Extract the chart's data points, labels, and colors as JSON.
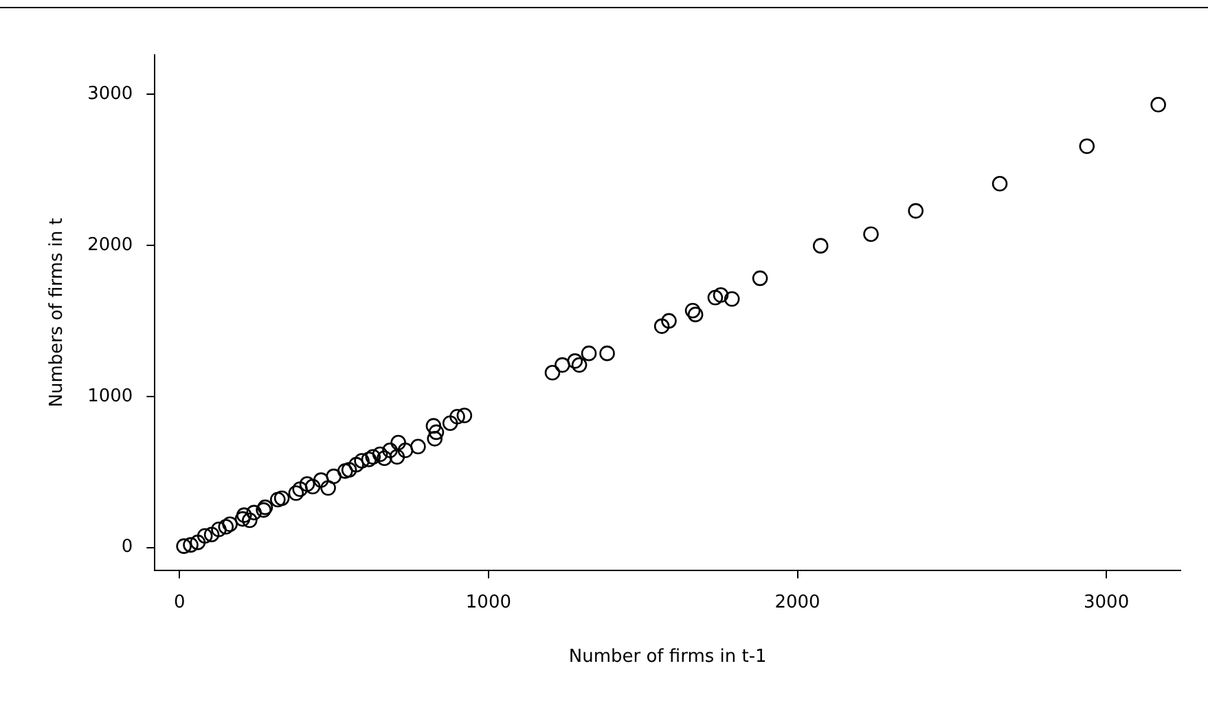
{
  "chart_data": {
    "type": "scatter",
    "xlabel": "Number of firms in t-1",
    "ylabel": "Numbers of firms in t",
    "xlim": [
      -80,
      3240
    ],
    "ylim": [
      -150,
      3260
    ],
    "xticks": [
      0,
      1000,
      2000,
      3000
    ],
    "yticks": [
      0,
      1000,
      2000,
      3000
    ],
    "grid": false,
    "marker": "circle",
    "series": [
      {
        "color": "#000000",
        "x": [
          14,
          36,
          59,
          82,
          104,
          127,
          150,
          163,
          204,
          209,
          227,
          241,
          272,
          277,
          318,
          331,
          377,
          390,
          413,
          431,
          458,
          481,
          499,
          536,
          549,
          572,
          590,
          613,
          626,
          649,
          663,
          681,
          704,
          708,
          731,
          772,
          822,
          831,
          826,
          876,
          899,
          922,
          1207,
          1239,
          1280,
          1294,
          1325,
          1384,
          1561,
          1584,
          1661,
          1670,
          1734,
          1752,
          1788,
          1879,
          2075,
          2238,
          2383,
          2655,
          2937,
          3168
        ],
        "values": [
          9,
          17,
          34,
          77,
          86,
          120,
          137,
          154,
          189,
          214,
          180,
          231,
          248,
          266,
          317,
          326,
          360,
          386,
          420,
          403,
          446,
          394,
          471,
          506,
          514,
          548,
          574,
          583,
          600,
          617,
          591,
          643,
          600,
          694,
          643,
          668,
          805,
          763,
          720,
          823,
          866,
          874,
          1157,
          1208,
          1234,
          1208,
          1285,
          1285,
          1465,
          1500,
          1568,
          1542,
          1654,
          1671,
          1645,
          1782,
          1997,
          2074,
          2228,
          2408,
          2656,
          2931
        ]
      }
    ]
  }
}
